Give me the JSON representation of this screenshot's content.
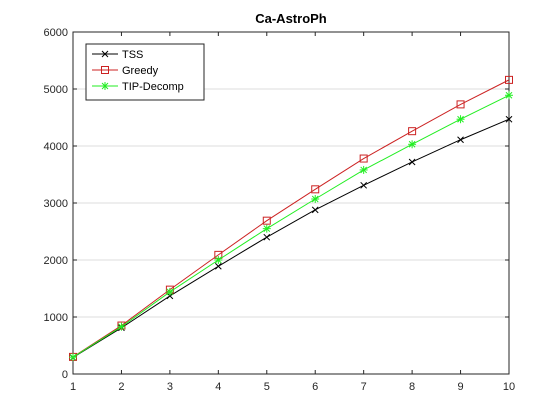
{
  "chart_data": {
    "type": "line",
    "title": "Ca-AstroPh",
    "xlabel": "",
    "ylabel": "",
    "x": [
      1,
      2,
      3,
      4,
      5,
      6,
      7,
      8,
      9,
      10
    ],
    "xlim": [
      1,
      10
    ],
    "ylim": [
      0,
      6000
    ],
    "xticks": [
      "1",
      "2",
      "3",
      "4",
      "5",
      "6",
      "7",
      "8",
      "9",
      "10"
    ],
    "yticks": [
      "0",
      "1000",
      "2000",
      "3000",
      "4000",
      "5000",
      "6000"
    ],
    "grid": "horizontal",
    "legend_position": "top-left",
    "series": [
      {
        "name": "TSS",
        "color": "#000000",
        "marker": "x",
        "values": [
          290,
          810,
          1370,
          1890,
          2400,
          2880,
          3310,
          3720,
          4110,
          4470
        ]
      },
      {
        "name": "Greedy",
        "color": "#cc2222",
        "marker": "square",
        "values": [
          300,
          850,
          1480,
          2090,
          2690,
          3240,
          3780,
          4260,
          4730,
          5160
        ]
      },
      {
        "name": "TIP-Decomp",
        "color": "#22ee22",
        "marker": "asterisk",
        "values": [
          295,
          830,
          1440,
          2000,
          2550,
          3070,
          3580,
          4030,
          4470,
          4890
        ]
      }
    ]
  }
}
